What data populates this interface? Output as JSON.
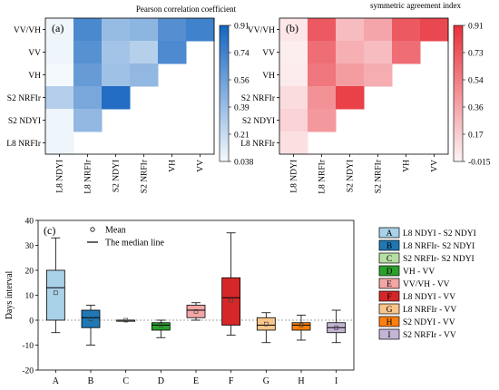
{
  "chart_data": [
    {
      "panel_label": "(a)",
      "type": "heatmap",
      "title": "Pearson correlation coefficient",
      "rows": [
        "VV/VH",
        "VV",
        "VH",
        "S2 NRFIr",
        "S2 NDYI",
        "L8 NRFIr"
      ],
      "columns": [
        "L8 NDYI",
        "L8 NRFIr",
        "S2 NDYI",
        "S2 NRFIr",
        "VH",
        "VV"
      ],
      "values": [
        [
          0.06,
          0.7,
          0.4,
          0.44,
          0.66,
          0.74
        ],
        [
          0.06,
          0.65,
          0.35,
          0.28,
          0.69,
          null
        ],
        [
          0.04,
          0.59,
          0.37,
          0.42,
          null,
          null
        ],
        [
          0.29,
          0.52,
          0.86,
          null,
          null,
          null
        ],
        [
          0.06,
          0.42,
          null,
          null,
          null,
          null
        ],
        [
          0.06,
          null,
          null,
          null,
          null,
          null
        ]
      ],
      "colorbar": {
        "ticks": [
          "0.91",
          "0.74",
          "0.56",
          "0.39",
          "0.21",
          "0.038"
        ],
        "min": 0.038,
        "max": 0.91
      }
    },
    {
      "panel_label": "(b)",
      "type": "heatmap",
      "title": "symmetric agreement index",
      "rows": [
        "VV/VH",
        "VV",
        "VH",
        "S2 NRFIr",
        "S2 NDYI",
        "L8 NRFIr"
      ],
      "columns": [
        "L8 NDYI",
        "L8 NRFIr",
        "S2 NDYI",
        "S2 NRFIr",
        "VH",
        "VV"
      ],
      "values": [
        [
          0.05,
          0.72,
          0.25,
          0.36,
          0.72,
          0.8
        ],
        [
          0.02,
          0.62,
          0.31,
          0.25,
          0.62,
          null
        ],
        [
          0.03,
          0.58,
          0.4,
          0.32,
          null,
          null
        ],
        [
          0.1,
          0.45,
          0.84,
          null,
          null,
          null
        ],
        [
          0.14,
          0.42,
          null,
          null,
          null,
          null
        ],
        [
          0.08,
          null,
          null,
          null,
          null,
          null
        ]
      ],
      "colorbar": {
        "ticks": [
          "0.91",
          "0.73",
          "0.54",
          "0.36",
          "0.17",
          "-0.015"
        ],
        "min": -0.015,
        "max": 0.91
      }
    },
    {
      "panel_label": "(c)",
      "type": "box",
      "ylabel": "Days interval",
      "ylim": [
        -20,
        40
      ],
      "yticks": [
        40,
        30,
        20,
        10,
        0,
        -10,
        -20
      ],
      "categories": [
        "A",
        "B",
        "C",
        "D",
        "E",
        "F",
        "G",
        "H",
        "I"
      ],
      "boxes": [
        {
          "q1": 0,
          "median": 13,
          "q3": 20,
          "whisker_low": -5,
          "whisker_high": 33,
          "mean": 11,
          "color": "#a9d1e8"
        },
        {
          "q1": -3,
          "median": 1,
          "q3": 4,
          "whisker_low": -10,
          "whisker_high": 6,
          "mean": 0.5,
          "color": "#1f77b4"
        },
        {
          "q1": 0,
          "median": 0,
          "q3": 0,
          "whisker_low": 0,
          "whisker_high": 0,
          "mean": 0,
          "color": "#b7dfa5"
        },
        {
          "q1": -4,
          "median": -2,
          "q3": -1,
          "whisker_low": -7,
          "whisker_high": 0,
          "mean": -2,
          "color": "#2ca02c"
        },
        {
          "q1": 1,
          "median": 4,
          "q3": 6,
          "whisker_low": 0,
          "whisker_high": 7,
          "mean": 3.5,
          "color": "#f4a6a6"
        },
        {
          "q1": -2,
          "median": 9,
          "q3": 17,
          "whisker_low": -6,
          "whisker_high": 35,
          "mean": 8,
          "color": "#d62728"
        },
        {
          "q1": -4,
          "median": -2,
          "q3": 1,
          "whisker_low": -9,
          "whisker_high": 3,
          "mean": -1.5,
          "color": "#f9c58a"
        },
        {
          "q1": -4,
          "median": -2,
          "q3": -1,
          "whisker_low": -8,
          "whisker_high": 2,
          "mean": -2,
          "color": "#ff7f0e"
        },
        {
          "q1": -5,
          "median": -3,
          "q3": -1,
          "whisker_low": -9,
          "whisker_high": 4,
          "mean": -3,
          "color": "#c4b5d6"
        }
      ],
      "legend_inset": [
        {
          "label": "Mean",
          "symbol": "circle"
        },
        {
          "label": "The median line",
          "symbol": "line"
        }
      ],
      "legend": [
        {
          "key": "A",
          "label": "L8 NDYI - S2 NDYI",
          "color": "#a9d1e8"
        },
        {
          "key": "B",
          "label": "L8 NRFIr- S2 NDYI",
          "color": "#1f77b4"
        },
        {
          "key": "C",
          "label": "S2 NRFIr- S2 NDYI",
          "color": "#b7dfa5"
        },
        {
          "key": "D",
          "label": "VH - VV",
          "color": "#2ca02c"
        },
        {
          "key": "E",
          "label": "VV/VH - VV",
          "color": "#f4a6a6"
        },
        {
          "key": "F",
          "label": "L8 NDYI - VV",
          "color": "#d62728"
        },
        {
          "key": "G",
          "label": "L8 NRFIr - VV",
          "color": "#f9c58a"
        },
        {
          "key": "H",
          "label": "S2 NDYI - VV",
          "color": "#ff7f0e"
        },
        {
          "key": "I",
          "label": "S2 NRFIr - VV",
          "color": "#c4b5d6"
        }
      ]
    }
  ],
  "palette": {
    "blue_low": "#f4f9fd",
    "blue_high": "#1565c0",
    "red_low": "#fdf4f5",
    "red_high": "#e8313a"
  }
}
